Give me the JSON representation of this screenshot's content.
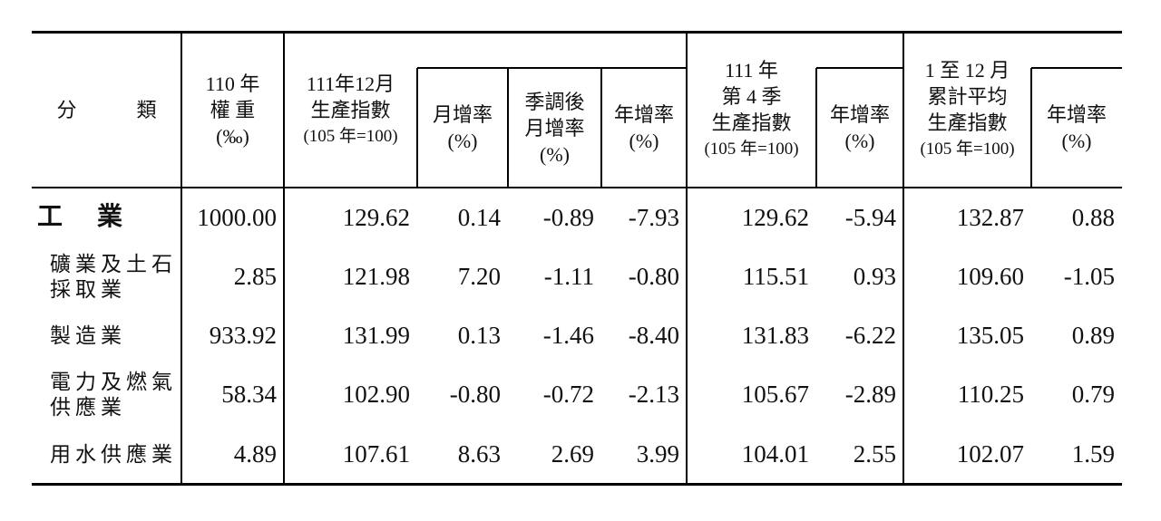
{
  "header": {
    "columns": [
      {
        "lines": [
          "分　　　類"
        ]
      },
      {
        "lines": [
          "110 年",
          "權 重",
          "(‰)"
        ]
      },
      {
        "lines": [
          "111年12月",
          "生產指數",
          "(105 年=100)"
        ]
      },
      {
        "lines": [
          "月增率",
          "(%)"
        ]
      },
      {
        "lines": [
          "季調後",
          "月增率",
          "(%)"
        ]
      },
      {
        "lines": [
          "年增率",
          "(%)"
        ]
      },
      {
        "lines": [
          "111 年",
          "第 4 季",
          "生產指數",
          "(105 年=100)"
        ]
      },
      {
        "lines": [
          "年增率",
          "(%)"
        ]
      },
      {
        "lines": [
          "1 至 12 月",
          "累計平均",
          "生產指數",
          "(105 年=100)"
        ]
      },
      {
        "lines": [
          "年增率",
          "(%)"
        ]
      }
    ]
  },
  "table": {
    "rows": [
      {
        "label": [
          "工　業"
        ],
        "values": [
          "1000.00",
          "129.62",
          "0.14",
          "-0.89",
          "-7.93",
          "129.62",
          "-5.94",
          "132.87",
          "0.88"
        ]
      },
      {
        "label": [
          "礦業及土石",
          "採取業"
        ],
        "values": [
          "2.85",
          "121.98",
          "7.20",
          "-1.11",
          "-0.80",
          "115.51",
          "0.93",
          "109.60",
          "-1.05"
        ]
      },
      {
        "label": [
          "製造業"
        ],
        "values": [
          "933.92",
          "131.99",
          "0.13",
          "-1.46",
          "-8.40",
          "131.83",
          "-6.22",
          "135.05",
          "0.89"
        ]
      },
      {
        "label": [
          "電力及燃氣",
          "供應業"
        ],
        "values": [
          "58.34",
          "102.90",
          "-0.80",
          "-0.72",
          "-2.13",
          "105.67",
          "-2.89",
          "110.25",
          "0.79"
        ]
      },
      {
        "label": [
          "用水供應業"
        ],
        "values": [
          "4.89",
          "107.61",
          "8.63",
          "2.69",
          "3.99",
          "104.01",
          "2.55",
          "102.07",
          "1.59"
        ]
      }
    ]
  }
}
